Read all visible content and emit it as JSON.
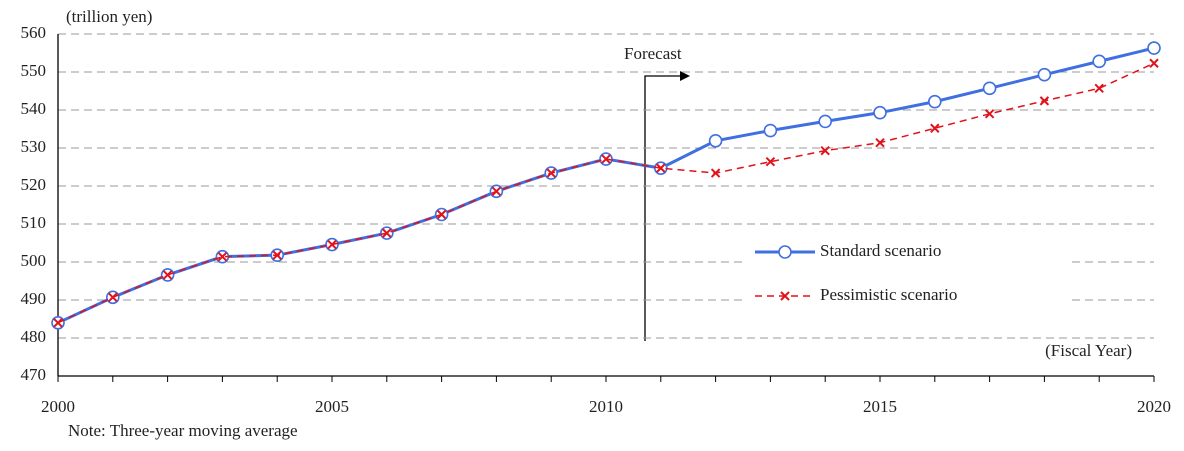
{
  "chart_data": {
    "type": "line",
    "y_unit_label": "(trillion yen)",
    "x_axis_label": "(Fiscal Year)",
    "annotation": "Forecast",
    "note": "Note: Three-year moving average",
    "x": [
      2000,
      2001,
      2002,
      2003,
      2004,
      2005,
      2006,
      2007,
      2008,
      2009,
      2010,
      2011,
      2012,
      2013,
      2014,
      2015,
      2016,
      2017,
      2018,
      2019,
      2020
    ],
    "series": [
      {
        "name": "Standard scenario",
        "color": "#3f6fe0",
        "marker": "circle",
        "dash": false,
        "values": [
          484,
          490.7,
          496.6,
          501.4,
          501.8,
          504.6,
          507.6,
          512.5,
          518.6,
          523.4,
          527.1,
          524.7,
          531.9,
          534.6,
          537,
          539.3,
          542.2,
          545.7,
          549.3,
          552.8,
          556.3
        ]
      },
      {
        "name": "Pessimistic scenario",
        "color": "#e0121b",
        "marker": "x",
        "dash": true,
        "values": [
          484,
          490.7,
          496.6,
          501.4,
          501.8,
          504.6,
          507.6,
          512.5,
          518.6,
          523.4,
          527.1,
          524.7,
          523.4,
          526.4,
          529.3,
          531.4,
          535.2,
          539,
          542.4,
          545.7,
          552.3
        ]
      }
    ],
    "xlim": [
      2000,
      2020
    ],
    "xticks": [
      2000,
      2005,
      2010,
      2015,
      2020
    ],
    "ylim": [
      470,
      560
    ],
    "yticks": [
      470,
      480,
      490,
      500,
      510,
      520,
      530,
      540,
      550,
      560
    ],
    "grid": true
  }
}
